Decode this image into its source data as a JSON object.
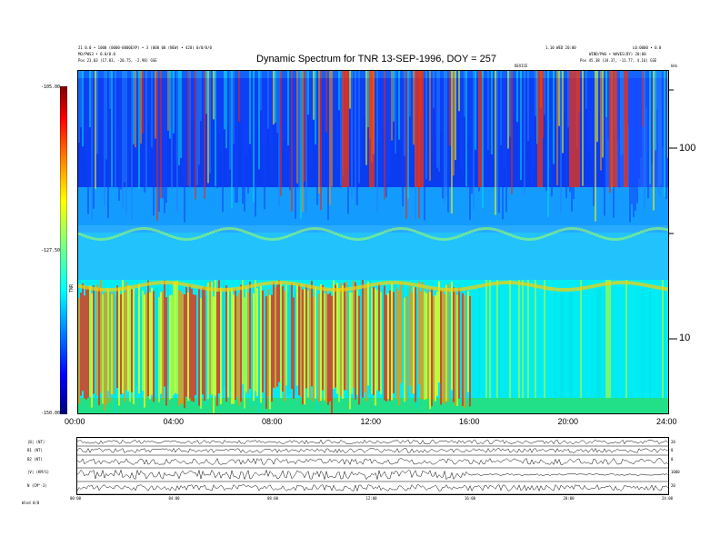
{
  "header": {
    "left_line1": "21 0.0 • 1000 (0000-0000EXP) • 3 (000 00 (NEW) • 420) 0/0/0/0",
    "left_line2": "MO/PWS3 • 0.0/0.0",
    "left_pos": "Pos   23.03 (17.83, -20.75, -2.98) GSE",
    "right_mid1": "1.10 WED 20:00",
    "right_mid2": "DEVICE",
    "right_top": "L0:0000 • 0.0",
    "right_line2": "WIND/PWS • WAVES(BY) 20:00",
    "right_pos": "Pos   45.38 (34.37, -11.77, 4.16) GSE",
    "right_corner": "kHz"
  },
  "chart_data": {
    "type": "heatmap",
    "title": "Dynamic Spectrum for TNR 13-SEP-1996, DOY = 257",
    "xlabel": "",
    "ylabel": "",
    "x_range": [
      "00:00",
      "24:00"
    ],
    "x_ticks": [
      "00:00",
      "04:00",
      "08:00",
      "12:00",
      "16:00",
      "20:00",
      "24:00"
    ],
    "y_scale": "log",
    "y_ticks": [
      "10",
      "100"
    ],
    "colorbar": {
      "ticks": [
        "-105.00",
        "-127.50",
        "-150.00"
      ],
      "range": [
        -150.0,
        -105.0
      ],
      "label": "TNR",
      "colors": [
        "#000080",
        "#0000ff",
        "#0080ff",
        "#00ffff",
        "#80ff80",
        "#ffff00",
        "#ff8000",
        "#ff0000",
        "#800000"
      ]
    }
  },
  "panels": {
    "labels": [
      "|B| (NT)",
      "B1 (NT)",
      "B2 (NT)",
      "|V| (KM/S)",
      "N (CM^-3)",
      "|B|(T)"
    ],
    "right_labels": [
      "20",
      "0",
      "0",
      "1000",
      "20",
      "0"
    ],
    "x_ticks": [
      "00:00",
      "04:00",
      "08:00",
      "12:00",
      "16:00",
      "20:00",
      "24:00"
    ],
    "footer": "Wind      0/0"
  }
}
